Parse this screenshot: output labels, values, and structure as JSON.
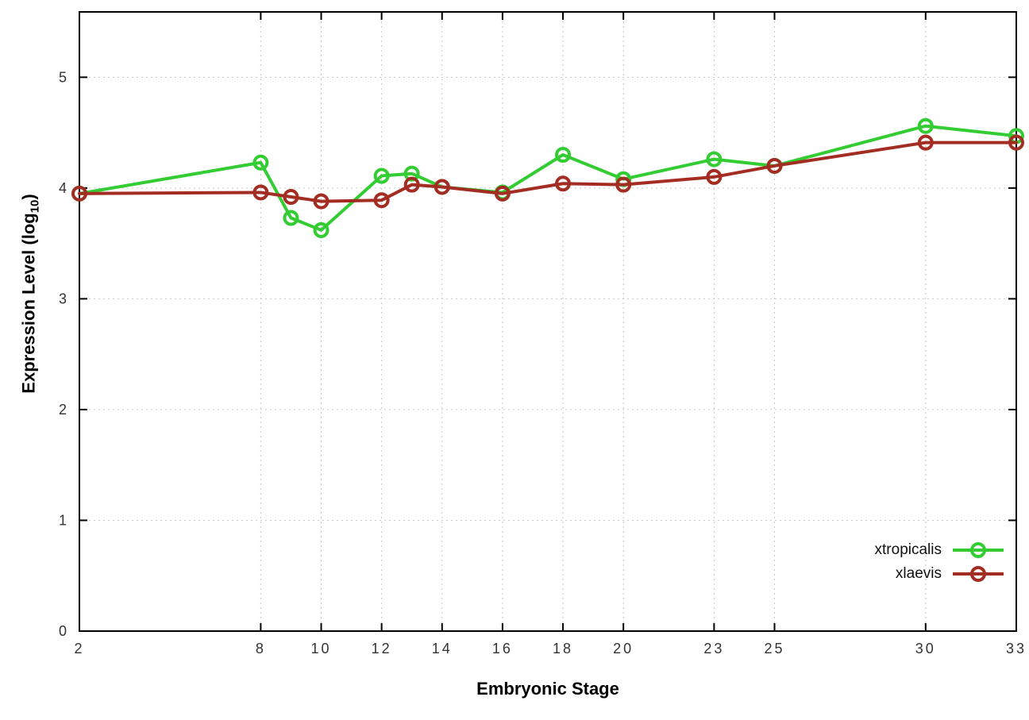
{
  "chart_data": {
    "type": "line",
    "x": [
      2,
      8,
      9,
      10,
      12,
      13,
      14,
      16,
      18,
      20,
      23,
      25,
      30,
      33
    ],
    "series": [
      {
        "name": "xtropicalis",
        "color": "#33cc33",
        "values": [
          3.95,
          4.23,
          3.73,
          3.62,
          4.11,
          4.13,
          4.01,
          3.96,
          4.3,
          4.08,
          4.26,
          4.2,
          4.56,
          4.47
        ]
      },
      {
        "name": "xlaevis",
        "color": "#a32c23",
        "values": [
          3.95,
          3.96,
          3.92,
          3.88,
          3.89,
          4.03,
          4.01,
          3.95,
          4.04,
          4.03,
          4.1,
          4.2,
          4.41,
          4.41
        ]
      }
    ],
    "title": "",
    "xlabel": "Embryonic Stage",
    "ylabel": "Expression Level (log10)",
    "xlim": [
      2,
      33
    ],
    "ylim": [
      0,
      5.59
    ],
    "xticks": [
      2,
      8,
      10,
      12,
      14,
      16,
      18,
      20,
      23,
      25,
      30,
      33
    ],
    "yticks": [
      0,
      1,
      2,
      3,
      4,
      5
    ],
    "grid": true,
    "legend_position": "bottom-right"
  },
  "labels": {
    "ylabel_prefix": "Expression Level (log",
    "ylabel_sub": "10",
    "ylabel_suffix": ")",
    "xlabel": "Embryonic Stage"
  }
}
